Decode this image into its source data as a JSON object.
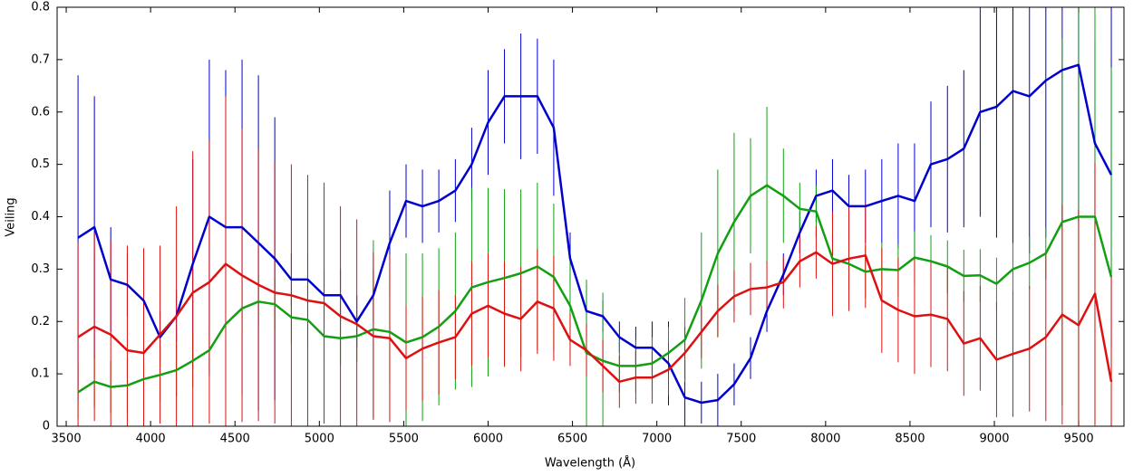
{
  "chart_data": {
    "type": "line",
    "xlabel": "Wavelength (Å)",
    "ylabel": "Veiling",
    "x": [
      3570,
      3667,
      3764,
      3862,
      3959,
      4056,
      4153,
      4250,
      4348,
      4445,
      4542,
      4639,
      4736,
      4834,
      4931,
      5028,
      5125,
      5222,
      5320,
      5417,
      5514,
      5611,
      5708,
      5806,
      5903,
      6000,
      6097,
      6194,
      6292,
      6389,
      6486,
      6583,
      6680,
      6778,
      6875,
      6972,
      7069,
      7166,
      7264,
      7361,
      7458,
      7555,
      7652,
      7750,
      7847,
      7944,
      8041,
      8138,
      8236,
      8333,
      8430,
      8527,
      8624,
      8722,
      8819,
      8916,
      9013,
      9110,
      9208,
      9305,
      9402,
      9499,
      9596,
      9693
    ],
    "series": [
      {
        "color": "#0000cc",
        "values": [
          0.36,
          0.38,
          0.28,
          0.27,
          0.24,
          0.17,
          0.21,
          0.31,
          0.4,
          0.38,
          0.38,
          0.35,
          0.32,
          0.28,
          0.28,
          0.25,
          0.25,
          0.2,
          0.25,
          0.35,
          0.43,
          0.42,
          0.43,
          0.45,
          0.5,
          0.58,
          0.63,
          0.63,
          0.63,
          0.57,
          0.32,
          0.22,
          0.21,
          0.17,
          0.15,
          0.15,
          0.12,
          0.055,
          0.045,
          0.05,
          0.08,
          0.13,
          0.22,
          0.29,
          0.37,
          0.44,
          0.45,
          0.42,
          0.42,
          0.43,
          0.44,
          0.43,
          0.5,
          0.51,
          0.53,
          0.6,
          0.61,
          0.64,
          0.63,
          0.66,
          0.68,
          0.69,
          0.54,
          0.48
        ],
        "errors": [
          0.31,
          0.25,
          0.1,
          0.06,
          0.05,
          0.05,
          0.05,
          0.2,
          0.3,
          0.3,
          0.32,
          0.32,
          0.27,
          0.05,
          0.05,
          0.05,
          0.05,
          0.05,
          0.05,
          0.1,
          0.07,
          0.07,
          0.06,
          0.06,
          0.07,
          0.1,
          0.09,
          0.12,
          0.11,
          0.13,
          0.05,
          0.05,
          0.03,
          0.03,
          0.04,
          0.05,
          0.08,
          0.07,
          0.04,
          0.05,
          0.04,
          0.04,
          0.04,
          0.04,
          0.04,
          0.05,
          0.06,
          0.06,
          0.07,
          0.08,
          0.1,
          0.11,
          0.12,
          0.14,
          0.15,
          0.2,
          0.25,
          0.3,
          0.3,
          0.3,
          0.3,
          0.3,
          0.2,
          0.33
        ]
      },
      {
        "color": "#12a012",
        "values": [
          0.065,
          0.085,
          0.075,
          0.078,
          0.09,
          0.098,
          0.107,
          0.125,
          0.145,
          0.195,
          0.225,
          0.238,
          0.233,
          0.208,
          0.203,
          0.172,
          0.168,
          0.172,
          0.185,
          0.18,
          0.16,
          0.17,
          0.19,
          0.22,
          0.265,
          0.275,
          0.283,
          0.292,
          0.305,
          0.285,
          0.23,
          0.14,
          0.125,
          0.115,
          0.115,
          0.12,
          0.14,
          0.165,
          0.24,
          0.33,
          0.39,
          0.44,
          0.46,
          0.44,
          0.415,
          0.41,
          0.32,
          0.31,
          0.295,
          0.3,
          0.298,
          0.322,
          0.315,
          0.305,
          0.287,
          0.288,
          0.272,
          0.3,
          0.312,
          0.33,
          0.39,
          0.4,
          0.4,
          0.285
        ],
        "errors": [
          0.05,
          0.05,
          0.05,
          0.05,
          0.05,
          0.05,
          0.05,
          0.05,
          0.05,
          0.05,
          0.05,
          0.05,
          0.05,
          0.05,
          0.05,
          0.05,
          0.05,
          0.05,
          0.17,
          0.1,
          0.17,
          0.16,
          0.15,
          0.15,
          0.19,
          0.18,
          0.17,
          0.16,
          0.16,
          0.14,
          0.1,
          0.14,
          0.13,
          0.05,
          0.05,
          0.05,
          0.05,
          0.08,
          0.13,
          0.16,
          0.17,
          0.11,
          0.15,
          0.09,
          0.05,
          0.05,
          0.05,
          0.05,
          0.05,
          0.05,
          0.05,
          0.05,
          0.05,
          0.05,
          0.05,
          0.05,
          0.05,
          0.05,
          0.05,
          0.05,
          0.35,
          0.4,
          0.4,
          0.4
        ]
      },
      {
        "color": "#dd1111",
        "values": [
          0.17,
          0.19,
          0.175,
          0.145,
          0.14,
          0.175,
          0.21,
          0.255,
          0.275,
          0.31,
          0.288,
          0.27,
          0.255,
          0.25,
          0.24,
          0.235,
          0.21,
          0.195,
          0.172,
          0.168,
          0.13,
          0.148,
          0.16,
          0.17,
          0.215,
          0.23,
          0.215,
          0.205,
          0.238,
          0.225,
          0.165,
          0.145,
          0.115,
          0.085,
          0.093,
          0.093,
          0.108,
          0.14,
          0.18,
          0.22,
          0.248,
          0.262,
          0.265,
          0.275,
          0.315,
          0.332,
          0.31,
          0.32,
          0.326,
          0.24,
          0.222,
          0.21,
          0.213,
          0.205,
          0.158,
          0.168,
          0.127,
          0.138,
          0.148,
          0.17,
          0.213,
          0.193,
          0.253,
          0.085
        ],
        "errors": [
          0.18,
          0.18,
          0.18,
          0.2,
          0.2,
          0.17,
          0.21,
          0.27,
          0.27,
          0.32,
          0.28,
          0.26,
          0.25,
          0.25,
          0.24,
          0.23,
          0.21,
          0.2,
          0.16,
          0.16,
          0.1,
          0.1,
          0.1,
          0.08,
          0.1,
          0.1,
          0.1,
          0.1,
          0.1,
          0.1,
          0.05,
          0.05,
          0.05,
          0.05,
          0.05,
          0.05,
          0.05,
          0.05,
          0.05,
          0.05,
          0.05,
          0.05,
          0.05,
          0.05,
          0.05,
          0.05,
          0.1,
          0.1,
          0.1,
          0.1,
          0.1,
          0.11,
          0.1,
          0.1,
          0.1,
          0.1,
          0.11,
          0.12,
          0.12,
          0.16,
          0.21,
          0.22,
          0.25,
          0.2
        ]
      }
    ],
    "xlim": [
      3446,
      9768
    ],
    "ylim": [
      0,
      0.8
    ],
    "xticks": [
      3500,
      4000,
      4500,
      5000,
      5500,
      6000,
      6500,
      7000,
      7500,
      8000,
      8500,
      9000,
      9500
    ],
    "yticks": [
      0,
      0.1,
      0.2,
      0.3,
      0.4,
      0.5,
      0.6,
      0.7,
      0.8
    ]
  }
}
